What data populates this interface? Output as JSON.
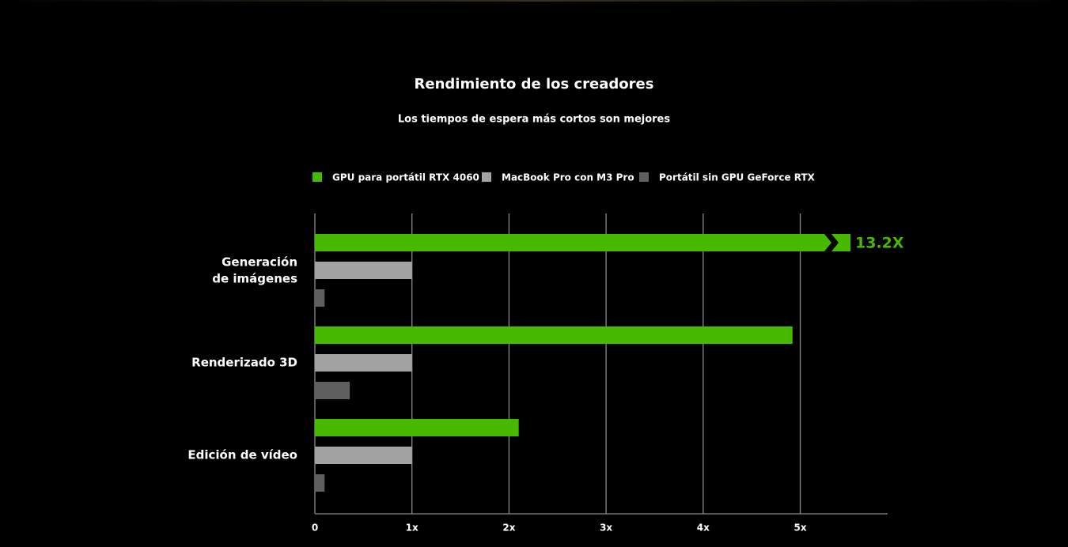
{
  "chart_data": {
    "type": "barh",
    "title": "Rendimiento de los creadores",
    "subtitle": "Los tiempos de espera más cortos son mejores",
    "categories": [
      "Generación\nde imágenes",
      "Renderizado 3D",
      "Edición de vídeo"
    ],
    "series": [
      {
        "name": "GPU para portátil RTX 4060",
        "color": "#46b900",
        "values": [
          13.2,
          4.92,
          2.1
        ],
        "value_labels": [
          "13.2X",
          null,
          null
        ]
      },
      {
        "name": "MacBook Pro con M3 Pro",
        "color": "#a3a3a3",
        "values": [
          1,
          1,
          1
        ]
      },
      {
        "name": "Portátil sin GPU GeForce RTX",
        "color": "#5f5f5f",
        "values": [
          0.1,
          0.36,
          0.1
        ]
      }
    ],
    "xlim": [
      0,
      5.9
    ],
    "xticks": [
      0,
      {
        "value": 1,
        "label": "1x"
      },
      {
        "value": 2,
        "label": "2x"
      },
      {
        "value": 3,
        "label": "3x"
      },
      {
        "value": 4,
        "label": "4x"
      },
      {
        "value": 5,
        "label": "5x"
      }
    ],
    "grid": true
  }
}
